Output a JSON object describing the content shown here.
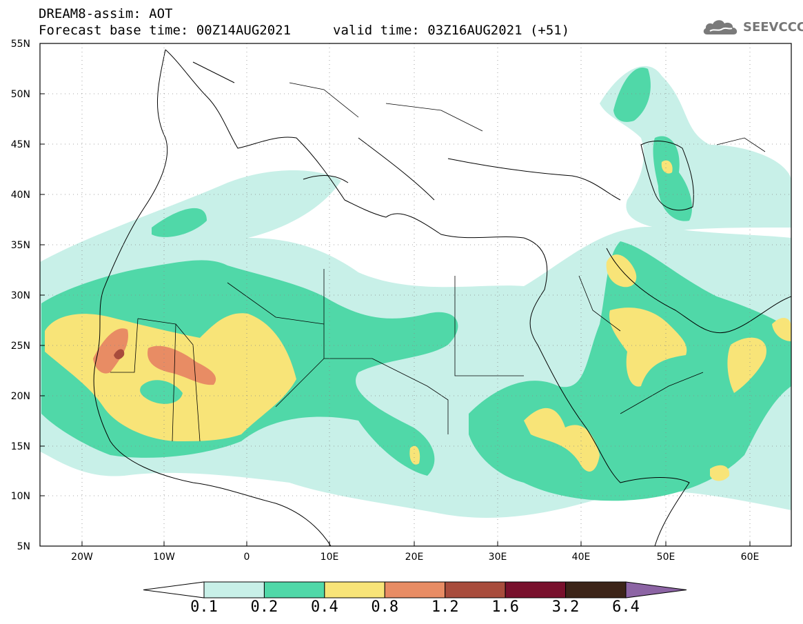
{
  "header": {
    "title_line1": "DREAM8-assim: AOT",
    "title_line2": "Forecast base time: 00Z14AUG2021",
    "valid_time": "valid time: 03Z16AUG2021 (+51)",
    "logo_text": "SEEVCCC",
    "logo_icon": "cloud-icon"
  },
  "map": {
    "projection": "cylindrical lat-lon",
    "lon_range": [
      -25,
      65
    ],
    "lat_range": [
      5,
      55
    ],
    "x_ticks": [
      "20W",
      "10W",
      "0",
      "10E",
      "20E",
      "30E",
      "40E",
      "50E",
      "60E"
    ],
    "y_ticks": [
      "55N",
      "50N",
      "45N",
      "40N",
      "35N",
      "30N",
      "25N",
      "20N",
      "15N",
      "10N",
      "5N"
    ],
    "grid": "dotted",
    "field": "Aerosol optical thickness (AOT)"
  },
  "colorbar": {
    "labels": [
      "0.1",
      "0.2",
      "0.4",
      "0.8",
      "1.2",
      "1.6",
      "3.2",
      "6.4"
    ],
    "colors": [
      "#ffffff",
      "#c8f0e8",
      "#50d8a8",
      "#f8e478",
      "#e88c64",
      "#a84c3c",
      "#78102c",
      "#3c2418",
      "#8c64a4"
    ]
  }
}
